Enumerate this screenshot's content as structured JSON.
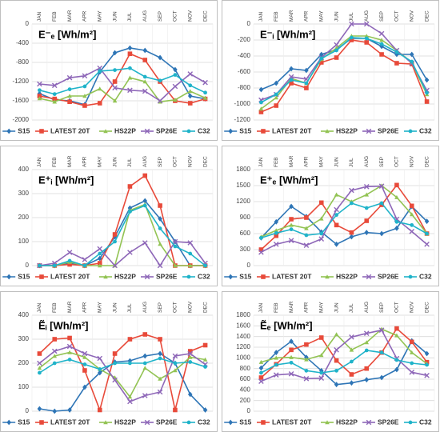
{
  "chart_data": [
    {
      "type": "line",
      "title": "E⁻ₑ [Wh/m²]",
      "categories": [
        "JAN",
        "FEB",
        "MAR",
        "APR",
        "MAY",
        "JUN",
        "JUL",
        "AUG",
        "SEP",
        "OCT",
        "NOV",
        "DEC"
      ],
      "ylim": [
        -2000,
        0
      ],
      "yticks": [
        0,
        -400,
        -800,
        -1200,
        -1600,
        -2000
      ],
      "grid": true,
      "legend": "bottom",
      "series": [
        {
          "name": "S15",
          "color": "#2e75b6",
          "marker": "diamond",
          "values": [
            -1450,
            -1580,
            -1600,
            -1680,
            -1000,
            -600,
            -500,
            -550,
            -700,
            -950,
            -1500,
            -1560
          ]
        },
        {
          "name": "LATEST 20T",
          "color": "#e84a3a",
          "marker": "square",
          "values": [
            -1500,
            -1560,
            -1620,
            -1700,
            -1650,
            -1200,
            -620,
            -750,
            -1200,
            -1600,
            -1650,
            -1560
          ]
        },
        {
          "name": "HS22P",
          "color": "#92c353",
          "marker": "triangle",
          "values": [
            -1550,
            -1620,
            -1500,
            -1500,
            -1350,
            -1600,
            -1120,
            -1200,
            -1620,
            -1580,
            -1400,
            -1540
          ]
        },
        {
          "name": "SP26E",
          "color": "#8e67b8",
          "marker": "x",
          "values": [
            -1250,
            -1280,
            -1120,
            -1080,
            -920,
            -1330,
            -1380,
            -1400,
            -1600,
            -1300,
            -1040,
            -1220
          ]
        },
        {
          "name": "C32",
          "color": "#1fb3c9",
          "marker": "circle",
          "values": [
            -1380,
            -1460,
            -1360,
            -1300,
            -980,
            -960,
            -920,
            -1100,
            -1180,
            -1060,
            -1280,
            -1430
          ]
        }
      ]
    },
    {
      "type": "line",
      "title": "E⁻ᵢ [Wh/m²]",
      "categories": [
        "JAN",
        "FEB",
        "MAR",
        "APR",
        "MAY",
        "JUN",
        "JUL",
        "AUG",
        "SEP",
        "OCT",
        "NOV",
        "DEC"
      ],
      "ylim": [
        -1200,
        0
      ],
      "yticks": [
        0,
        -200,
        -400,
        -600,
        -800,
        -1000,
        -1200
      ],
      "grid": true,
      "legend": "bottom",
      "series": [
        {
          "name": "S15",
          "color": "#2e75b6",
          "marker": "diamond",
          "values": [
            -820,
            -740,
            -560,
            -580,
            -380,
            -320,
            -180,
            -180,
            -280,
            -380,
            -380,
            -700
          ]
        },
        {
          "name": "LATEST 20T",
          "color": "#e84a3a",
          "marker": "square",
          "values": [
            -1100,
            -1020,
            -740,
            -800,
            -480,
            -420,
            -200,
            -230,
            -380,
            -490,
            -500,
            -970
          ]
        },
        {
          "name": "HS22P",
          "color": "#92c353",
          "marker": "triangle",
          "values": [
            -1060,
            -920,
            -680,
            -740,
            -440,
            -300,
            -150,
            -150,
            -200,
            -330,
            -480,
            -880
          ]
        },
        {
          "name": "SP26E",
          "color": "#8e67b8",
          "marker": "x",
          "values": [
            -950,
            -880,
            -660,
            -690,
            -420,
            -260,
            0,
            0,
            -120,
            -330,
            -490,
            -830
          ]
        },
        {
          "name": "C32",
          "color": "#1fb3c9",
          "marker": "circle",
          "values": [
            -980,
            -880,
            -700,
            -740,
            -430,
            -330,
            -170,
            -180,
            -250,
            -350,
            -470,
            -860
          ]
        }
      ]
    },
    {
      "type": "line",
      "title": "E⁺ᵢ [Wh/m²]",
      "categories": [
        "JAN",
        "FEB",
        "MAR",
        "APR",
        "MAY",
        "JUN",
        "JUL",
        "AUG",
        "SEP",
        "OCT",
        "NOV",
        "DEC"
      ],
      "ylim": [
        0,
        400
      ],
      "yticks": [
        0,
        100,
        200,
        300,
        400
      ],
      "grid": true,
      "legend": "bottom",
      "series": [
        {
          "name": "S15",
          "color": "#2e75b6",
          "marker": "diamond",
          "values": [
            0,
            0,
            10,
            0,
            30,
            120,
            240,
            270,
            195,
            100,
            0,
            0
          ]
        },
        {
          "name": "LATEST 20T",
          "color": "#e84a3a",
          "marker": "square",
          "values": [
            0,
            0,
            5,
            0,
            10,
            130,
            330,
            375,
            250,
            0,
            0,
            0
          ]
        },
        {
          "name": "HS22P",
          "color": "#92c353",
          "marker": "triangle",
          "values": [
            0,
            0,
            15,
            0,
            0,
            0,
            230,
            255,
            90,
            0,
            0,
            0
          ]
        },
        {
          "name": "SP26E",
          "color": "#8e67b8",
          "marker": "x",
          "values": [
            0,
            10,
            55,
            25,
            70,
            0,
            55,
            95,
            0,
            100,
            95,
            10
          ]
        },
        {
          "name": "C32",
          "color": "#1fb3c9",
          "marker": "circle",
          "values": [
            0,
            0,
            20,
            0,
            50,
            100,
            225,
            250,
            155,
            80,
            50,
            0
          ]
        }
      ]
    },
    {
      "type": "line",
      "title": "E⁺ₑ [Wh/m²]",
      "categories": [
        "JAN",
        "FEB",
        "MAR",
        "APR",
        "MAY",
        "JUN",
        "JUL",
        "AUG",
        "SEP",
        "OCT",
        "NOV",
        "DEC"
      ],
      "ylim": [
        0,
        1800
      ],
      "yticks": [
        0,
        300,
        600,
        900,
        1200,
        1500,
        1800
      ],
      "grid": true,
      "legend": "bottom",
      "series": [
        {
          "name": "S15",
          "color": "#2e75b6",
          "marker": "diamond",
          "values": [
            520,
            820,
            1110,
            920,
            630,
            400,
            540,
            620,
            600,
            700,
            1110,
            830
          ]
        },
        {
          "name": "LATEST 20T",
          "color": "#e84a3a",
          "marker": "square",
          "values": [
            300,
            560,
            870,
            900,
            1180,
            760,
            620,
            840,
            1140,
            1510,
            1120,
            600
          ]
        },
        {
          "name": "HS22P",
          "color": "#92c353",
          "marker": "triangle",
          "values": [
            540,
            660,
            760,
            700,
            880,
            1330,
            1200,
            1330,
            1500,
            1280,
            960,
            600
          ]
        },
        {
          "name": "SP26E",
          "color": "#8e67b8",
          "marker": "x",
          "values": [
            250,
            400,
            470,
            380,
            500,
            1050,
            1410,
            1480,
            1490,
            870,
            640,
            400
          ]
        },
        {
          "name": "C32",
          "color": "#1fb3c9",
          "marker": "circle",
          "values": [
            520,
            610,
            680,
            570,
            600,
            950,
            1170,
            1080,
            1170,
            820,
            760,
            600
          ]
        }
      ]
    },
    {
      "type": "line",
      "title": "Ẽᵢ [Wh/m²]",
      "categories": [
        "JAN",
        "FEB",
        "MAR",
        "APR",
        "MAY",
        "JUN",
        "JUL",
        "AUG",
        "SEP",
        "OCT",
        "NOV",
        "DEC"
      ],
      "ylim": [
        0,
        400
      ],
      "yticks": [
        0,
        100,
        200,
        300,
        400
      ],
      "grid": true,
      "legend": "bottom",
      "series": [
        {
          "name": "S15",
          "color": "#2e75b6",
          "marker": "diamond",
          "values": [
            10,
            0,
            5,
            100,
            160,
            205,
            210,
            230,
            240,
            200,
            70,
            5
          ]
        },
        {
          "name": "LATEST 20T",
          "color": "#e84a3a",
          "marker": "square",
          "values": [
            240,
            300,
            305,
            170,
            5,
            240,
            300,
            320,
            300,
            5,
            250,
            275
          ]
        },
        {
          "name": "HS22P",
          "color": "#92c353",
          "marker": "triangle",
          "values": [
            180,
            230,
            245,
            225,
            175,
            140,
            60,
            180,
            135,
            170,
            225,
            215
          ]
        },
        {
          "name": "SP26E",
          "color": "#8e67b8",
          "marker": "x",
          "values": [
            200,
            250,
            270,
            240,
            220,
            130,
            40,
            65,
            80,
            230,
            240,
            195
          ]
        },
        {
          "name": "C32",
          "color": "#1fb3c9",
          "marker": "circle",
          "values": [
            160,
            200,
            215,
            195,
            175,
            200,
            200,
            200,
            220,
            200,
            205,
            185
          ]
        }
      ]
    },
    {
      "type": "line",
      "title": "Ẽₑ [Wh/m²]",
      "categories": [
        "JAN",
        "FEB",
        "MAR",
        "APR",
        "MAY",
        "JUN",
        "JUL",
        "AUG",
        "SEP",
        "OCT",
        "NOV",
        "DEC"
      ],
      "ylim": [
        0,
        1800
      ],
      "yticks": [
        0,
        200,
        400,
        600,
        800,
        1000,
        1200,
        1400,
        1600,
        1800
      ],
      "grid": true,
      "legend": "bottom",
      "series": [
        {
          "name": "S15",
          "color": "#2e75b6",
          "marker": "diamond",
          "values": [
            810,
            1100,
            1310,
            1010,
            760,
            500,
            530,
            590,
            630,
            780,
            1320,
            1080
          ]
        },
        {
          "name": "LATEST 20T",
          "color": "#e84a3a",
          "marker": "square",
          "values": [
            630,
            880,
            1150,
            1250,
            1380,
            950,
            690,
            800,
            1100,
            1550,
            1300,
            920
          ]
        },
        {
          "name": "HS22P",
          "color": "#92c353",
          "marker": "triangle",
          "values": [
            920,
            1000,
            1010,
            970,
            1050,
            1440,
            1150,
            1290,
            1540,
            1420,
            1100,
            890
          ]
        },
        {
          "name": "SP26E",
          "color": "#8e67b8",
          "marker": "x",
          "values": [
            560,
            680,
            700,
            610,
            620,
            1150,
            1390,
            1460,
            1520,
            990,
            730,
            670
          ]
        },
        {
          "name": "C32",
          "color": "#1fb3c9",
          "marker": "circle",
          "values": [
            720,
            870,
            910,
            760,
            720,
            760,
            930,
            1140,
            1100,
            960,
            900,
            870
          ]
        }
      ]
    }
  ]
}
